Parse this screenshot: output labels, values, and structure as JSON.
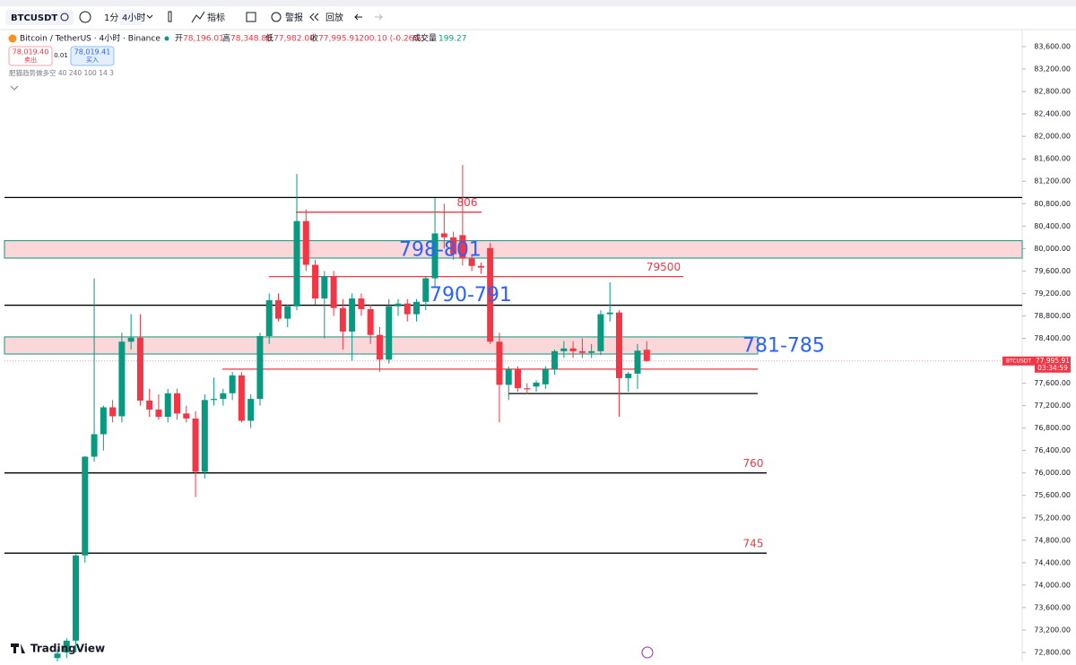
{
  "toolbar": {
    "symbol": "BTCUSDT",
    "interval_1m": "1分",
    "interval_4h": "4小时",
    "indicators": "指标",
    "alert": "警报",
    "replay": "回放"
  },
  "legend": {
    "title": "Bitcoin / TetherUS · 4小时 · Binance",
    "open_label": "开",
    "open": "78,196.01",
    "high_label": "高",
    "high": "78,348.88",
    "low_label": "低",
    "low": "77,982.00",
    "close_label": "收",
    "close": "77,995.91",
    "change": "-200.10 (-0.26%)",
    "volume_label": "成交量",
    "volume": "199.27",
    "sell_price": "78,019.40",
    "sell": "卖出",
    "spread": "0.01",
    "buy_price": "78,019.41",
    "buy": "买入",
    "indicator": "肥猫趋势做多空 40 240 100 14 3"
  },
  "logo": "TradingView",
  "chart_data": {
    "type": "candlestick",
    "up_color": "#089981",
    "down_color": "#f23645",
    "open": [
      72700,
      72800,
      73010,
      74530,
      76290,
      76690,
      77170,
      77010,
      78340,
      78410,
      77290,
      77130,
      77000,
      77420,
      77060,
      76970,
      76020,
      77300,
      77320,
      77420,
      77740,
      76930,
      77320,
      78440,
      79080,
      78750,
      78970,
      80490,
      79710,
      79110,
      79510,
      78940,
      78520,
      79110,
      78920,
      78460,
      78020,
      78970,
      79020,
      78830,
      79050,
      79470,
      80270,
      80200,
      80240,
      79820,
      79690,
      80010,
      78340,
      77570,
      77850,
      77510,
      77540,
      77580,
      77850,
      78170,
      78220,
      78170,
      78140,
      78170,
      78830,
      78860,
      77690,
      77770,
      78196.01
    ],
    "high": [
      72850,
      73050,
      74550,
      76300,
      79470,
      77200,
      77300,
      78500,
      78830,
      78830,
      77500,
      77400,
      77500,
      77500,
      77200,
      77100,
      77400,
      77700,
      77500,
      77800,
      77800,
      77400,
      78500,
      79200,
      79200,
      79000,
      81330,
      80700,
      79800,
      79600,
      79600,
      79100,
      79200,
      79200,
      79000,
      78600,
      79100,
      79100,
      79100,
      79100,
      79500,
      80900,
      80800,
      80300,
      81490,
      79900,
      79750,
      80100,
      78500,
      77900,
      77900,
      77600,
      77650,
      77900,
      78200,
      78350,
      78350,
      78400,
      78300,
      78900,
      79400,
      78900,
      77800,
      78300,
      78348.88
    ],
    "low": [
      72600,
      72700,
      72800,
      74400,
      76200,
      76400,
      76900,
      76900,
      78200,
      77200,
      77000,
      76950,
      76900,
      76950,
      76900,
      75570,
      75900,
      77200,
      77200,
      77300,
      76900,
      76800,
      77200,
      78300,
      78700,
      78600,
      78900,
      79600,
      79000,
      78400,
      78800,
      78200,
      78000,
      78800,
      78300,
      77800,
      77950,
      78800,
      78700,
      78700,
      78900,
      79300,
      80000,
      79800,
      79700,
      79600,
      79550,
      78300,
      76900,
      77300,
      77450,
      77400,
      77450,
      77500,
      77750,
      78050,
      78050,
      78050,
      78050,
      78100,
      78700,
      77000,
      77450,
      77500,
      77982
    ],
    "close": [
      72780,
      73010,
      74530,
      76290,
      76690,
      77170,
      77010,
      78340,
      78410,
      77290,
      77130,
      77000,
      77420,
      77060,
      76970,
      76020,
      77300,
      77320,
      77420,
      77740,
      76930,
      77320,
      78440,
      79080,
      78750,
      78970,
      80490,
      79710,
      79110,
      79510,
      78940,
      78520,
      79110,
      78920,
      78460,
      78020,
      78970,
      79020,
      78830,
      79050,
      79470,
      80270,
      80200,
      79900,
      79820,
      79690,
      79660,
      78340,
      77570,
      77850,
      77510,
      77490,
      77610,
      77850,
      78170,
      78220,
      78170,
      78140,
      78170,
      78830,
      78860,
      77690,
      77770,
      78180,
      77995.91
    ],
    "ylim": [
      72640,
      83904
    ],
    "yticks": [
      {
        "value": 83600,
        "label": "83,600.00"
      },
      {
        "value": 83200,
        "label": "83,200.00"
      },
      {
        "value": 82800,
        "label": "82,800.00"
      },
      {
        "value": 82400,
        "label": "82,400.00"
      },
      {
        "value": 82000,
        "label": "82,000.00"
      },
      {
        "value": 81600,
        "label": "81,600.00"
      },
      {
        "value": 81200,
        "label": "81,200.00"
      },
      {
        "value": 80800,
        "label": "80,800.00"
      },
      {
        "value": 80400,
        "label": "80,400.00"
      },
      {
        "value": 80000,
        "label": "80,000.00"
      },
      {
        "value": 79600,
        "label": "79,600.00"
      },
      {
        "value": 79200,
        "label": "79,200.00"
      },
      {
        "value": 78800,
        "label": "78,800.00"
      },
      {
        "value": 78400,
        "label": "78,400.00"
      },
      {
        "value": 78000,
        "label": "78,000.00"
      },
      {
        "value": 77600,
        "label": "77,600.00"
      },
      {
        "value": 77200,
        "label": "77,200.00"
      },
      {
        "value": 76800,
        "label": "76,800.00"
      },
      {
        "value": 76400,
        "label": "76,400.00"
      },
      {
        "value": 76000,
        "label": "76,000.00"
      },
      {
        "value": 75600,
        "label": "75,600.00"
      },
      {
        "value": 75200,
        "label": "75,200.00"
      },
      {
        "value": 74800,
        "label": "74,800.00"
      },
      {
        "value": 74400,
        "label": "74,400.00"
      },
      {
        "value": 74000,
        "label": "74,000.00"
      },
      {
        "value": 73600,
        "label": "73,600.00"
      },
      {
        "value": 73200,
        "label": "73,200.00"
      },
      {
        "value": 72800,
        "label": "72,800.00"
      }
    ],
    "levels": [
      {
        "value": 80910,
        "color": "#000000"
      },
      {
        "value": 80650,
        "color": "#f23645",
        "label": "806"
      },
      {
        "value": 79500,
        "color": "#f23645",
        "label": "79500"
      },
      {
        "value": 78990,
        "color": "#000000"
      },
      {
        "value": 77850,
        "color": "#f23645"
      },
      {
        "value": 77415,
        "color": "#000000"
      },
      {
        "value": 76000,
        "color": "#000000",
        "label": "760"
      },
      {
        "value": 74570,
        "color": "#000000",
        "label": "745"
      }
    ],
    "zones": [
      {
        "from": 79830,
        "to": 80140,
        "label": "798-801"
      },
      {
        "from": 78120,
        "to": 78425,
        "label": "781-785"
      }
    ],
    "annotations": [
      {
        "text": "790-791"
      }
    ],
    "current_price": {
      "value": 77995.91,
      "label": "77,995.91",
      "symbol": "BTCUSDT",
      "countdown": "03:34:59"
    }
  }
}
